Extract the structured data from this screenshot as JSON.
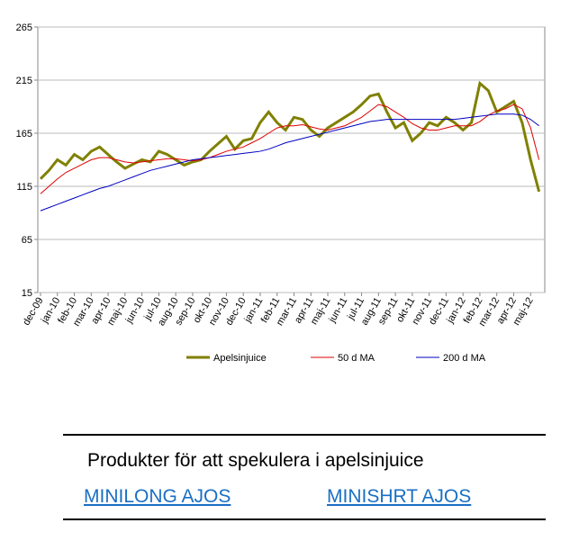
{
  "chart_data": {
    "type": "line",
    "categories": [
      "dec-09",
      null,
      "jan-10",
      null,
      "feb-10",
      null,
      "mar-10",
      null,
      "apr-10",
      null,
      "maj-10",
      null,
      "jun-10",
      null,
      "jul-10",
      null,
      "aug-10",
      null,
      "sep-10",
      null,
      "okt-10",
      null,
      "nov-10",
      null,
      "dec-10",
      null,
      "jan-11",
      null,
      "feb-11",
      null,
      "mar-11",
      null,
      "apr-11",
      null,
      "maj-11",
      null,
      "jun-11",
      null,
      "jul-11",
      null,
      "aug-11",
      null,
      "sep-11",
      null,
      "okt-11",
      null,
      "nov-11",
      null,
      "dec-11",
      null,
      "jan-12",
      null,
      "feb-12",
      null,
      "mar-12",
      null,
      "apr-12",
      null,
      "maj-12",
      null
    ],
    "series": [
      {
        "name": "Apelsinjuice",
        "color": "#808000",
        "width": 3,
        "values": [
          122,
          130,
          140,
          135,
          145,
          140,
          148,
          152,
          145,
          138,
          132,
          136,
          140,
          138,
          148,
          145,
          140,
          135,
          138,
          140,
          148,
          155,
          162,
          150,
          158,
          160,
          175,
          185,
          175,
          168,
          180,
          178,
          168,
          162,
          170,
          175,
          180,
          185,
          192,
          200,
          202,
          185,
          170,
          175,
          158,
          165,
          175,
          172,
          180,
          175,
          168,
          175,
          212,
          205,
          185,
          190,
          195,
          175,
          140,
          110
        ]
      },
      {
        "name": "50 d MA",
        "color": "#e00000",
        "width": 1,
        "values": [
          108,
          115,
          122,
          128,
          132,
          136,
          140,
          142,
          142,
          140,
          138,
          137,
          138,
          139,
          140,
          141,
          141,
          140,
          139,
          140,
          142,
          145,
          148,
          150,
          152,
          156,
          160,
          165,
          170,
          172,
          172,
          173,
          171,
          169,
          168,
          170,
          172,
          176,
          180,
          186,
          192,
          190,
          185,
          180,
          174,
          170,
          168,
          168,
          170,
          172,
          172,
          172,
          176,
          182,
          186,
          188,
          192,
          188,
          170,
          140
        ]
      },
      {
        "name": "200 d MA",
        "color": "#0000c0",
        "width": 1,
        "values": [
          92,
          95,
          98,
          101,
          104,
          107,
          110,
          113,
          115,
          118,
          121,
          124,
          127,
          130,
          132,
          134,
          136,
          138,
          140,
          141,
          142,
          143,
          144,
          145,
          146,
          147,
          148,
          150,
          153,
          156,
          158,
          160,
          162,
          164,
          166,
          168,
          170,
          172,
          174,
          176,
          177,
          178,
          178,
          178,
          178,
          178,
          178,
          178,
          178,
          178,
          179,
          180,
          181,
          182,
          183,
          183,
          183,
          182,
          178,
          172
        ]
      }
    ],
    "ylim": [
      15,
      265
    ],
    "yticks": [
      15,
      65,
      115,
      165,
      215,
      265
    ],
    "grid": true,
    "legend": "bottom"
  },
  "products": {
    "heading": "Produkter för att spekulera i apelsinjuice",
    "links": [
      "MINILONG AJOS",
      "MINISHRT AJOS"
    ]
  }
}
